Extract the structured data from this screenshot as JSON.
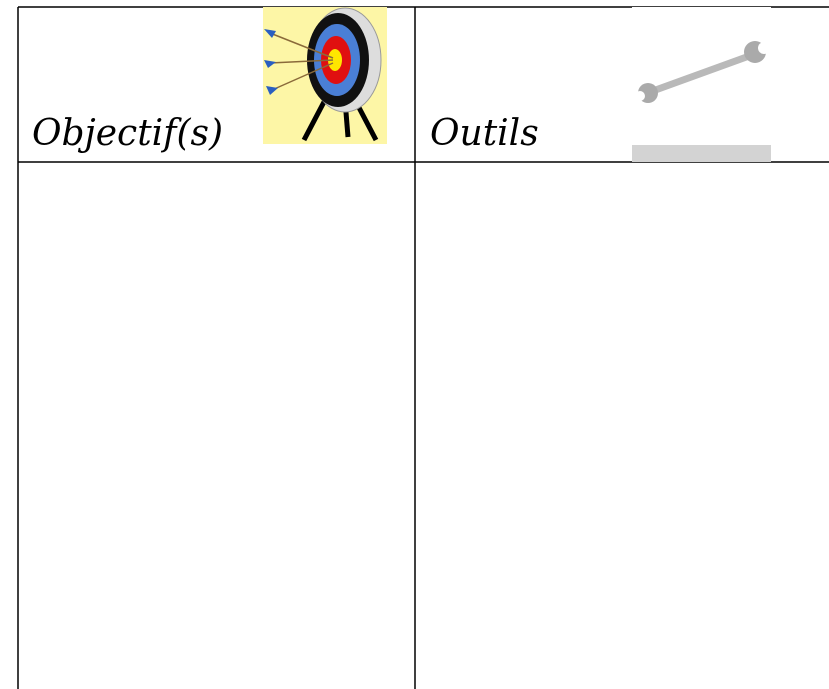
{
  "table": {
    "headers": [
      "Objectif(s)",
      "Outils"
    ]
  }
}
